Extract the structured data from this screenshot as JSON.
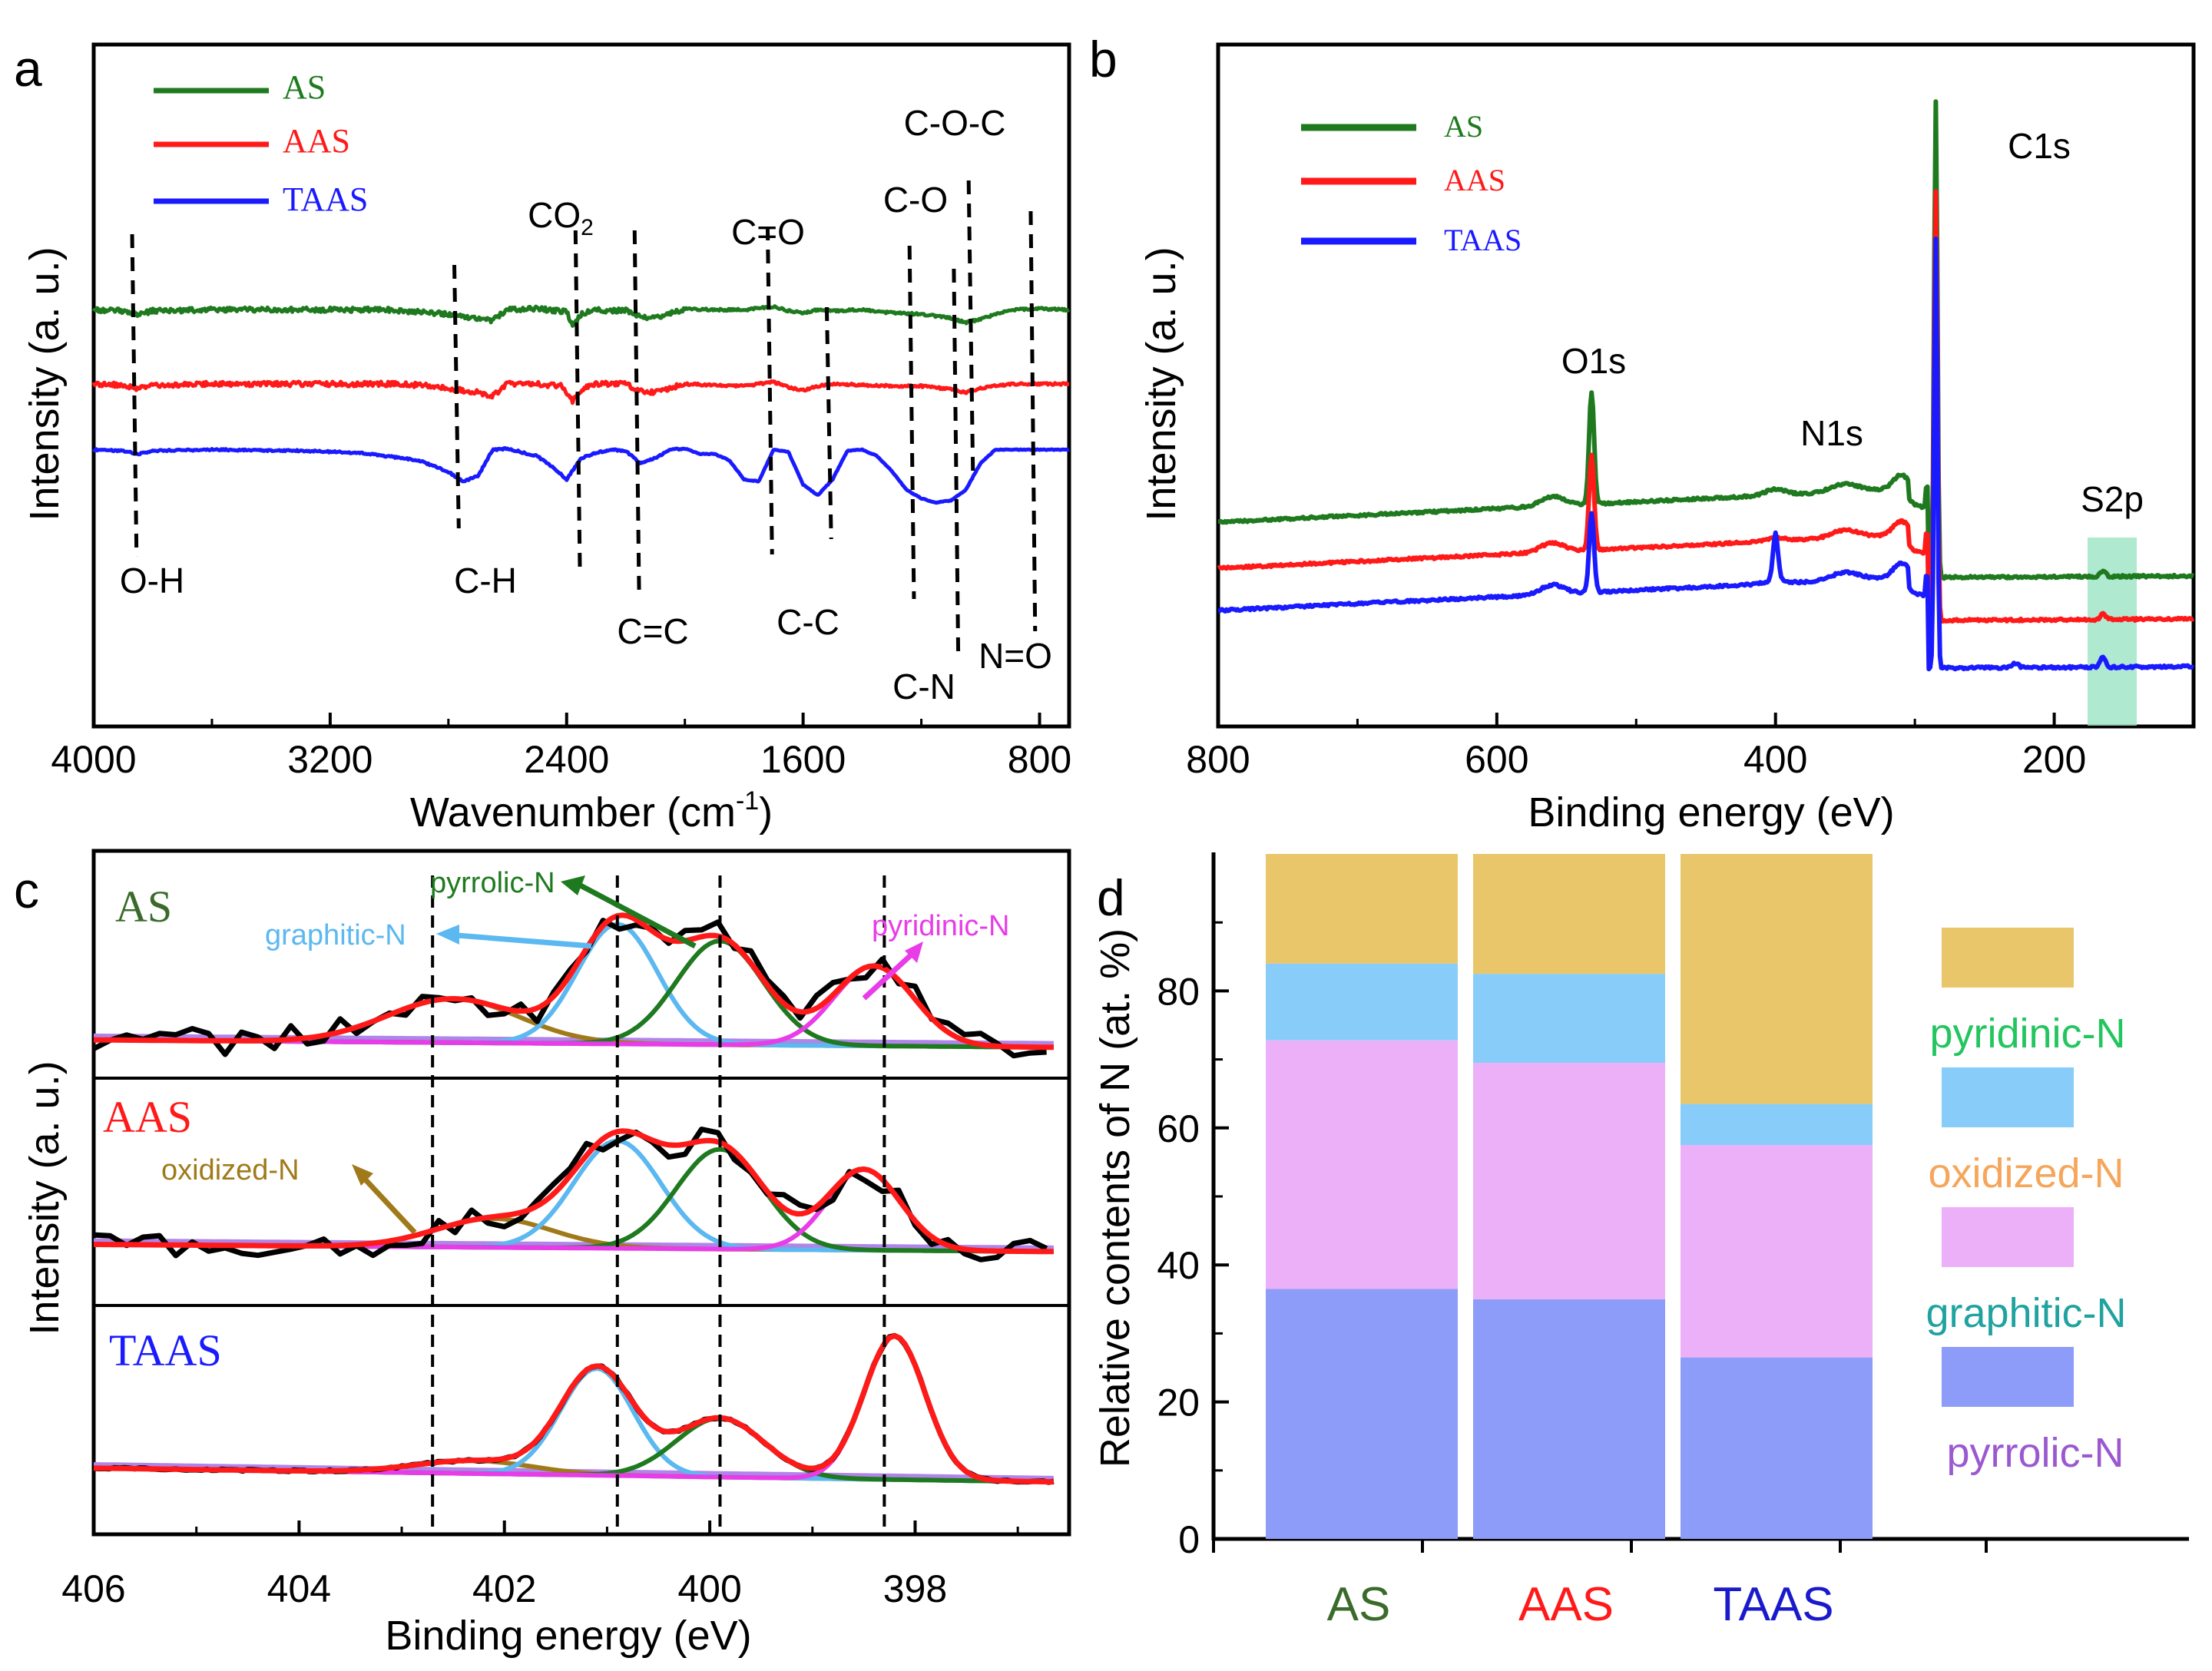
{
  "chart_data": [
    {
      "panel": "a",
      "type": "line",
      "title": "",
      "xlabel": "Wavenumber (cm-1)",
      "xlabel_main": "Wavenumber (cm",
      "xlabel_sup": "-1",
      "xlabel_close": ")",
      "ylabel": "Intensity (a. u.)",
      "xlim": [
        4000,
        700
      ],
      "xticks": [
        "4000",
        "3200",
        "2400",
        "1600",
        "800"
      ],
      "series": [
        {
          "name": "AS",
          "color": "#1f7a1f",
          "baseline": 0.7,
          "points": [
            [
              4000,
              0.7
            ],
            [
              3900,
              0.69
            ],
            [
              3850,
              0.66
            ],
            [
              3800,
              0.69
            ],
            [
              3600,
              0.7
            ],
            [
              3300,
              0.7
            ],
            [
              3000,
              0.7
            ],
            [
              2900,
              0.68
            ],
            [
              2800,
              0.66
            ],
            [
              2700,
              0.62
            ],
            [
              2650,
              0.6
            ],
            [
              2600,
              0.7
            ],
            [
              2500,
              0.71
            ],
            [
              2400,
              0.68
            ],
            [
              2380,
              0.55
            ],
            [
              2350,
              0.66
            ],
            [
              2300,
              0.7
            ],
            [
              2250,
              0.69
            ],
            [
              2200,
              0.7
            ],
            [
              2150,
              0.63
            ],
            [
              2100,
              0.62
            ],
            [
              2000,
              0.71
            ],
            [
              1900,
              0.7
            ],
            [
              1800,
              0.7
            ],
            [
              1700,
              0.73
            ],
            [
              1650,
              0.69
            ],
            [
              1600,
              0.67
            ],
            [
              1550,
              0.7
            ],
            [
              1500,
              0.69
            ],
            [
              1400,
              0.7
            ],
            [
              1300,
              0.67
            ],
            [
              1200,
              0.66
            ],
            [
              1100,
              0.62
            ],
            [
              1050,
              0.58
            ],
            [
              1000,
              0.61
            ],
            [
              900,
              0.7
            ],
            [
              800,
              0.71
            ],
            [
              700,
              0.7
            ]
          ]
        },
        {
          "name": "AAS",
          "color": "#ff1a1a",
          "baseline": 0.0,
          "points": [
            [
              4000,
              0.0
            ],
            [
              3900,
              -0.01
            ],
            [
              3850,
              -0.04
            ],
            [
              3800,
              -0.01
            ],
            [
              3600,
              0.0
            ],
            [
              3300,
              0.0
            ],
            [
              3000,
              0.0
            ],
            [
              2900,
              -0.01
            ],
            [
              2800,
              -0.04
            ],
            [
              2700,
              -0.08
            ],
            [
              2650,
              -0.11
            ],
            [
              2600,
              0.0
            ],
            [
              2500,
              0.0
            ],
            [
              2420,
              -0.02
            ],
            [
              2380,
              -0.16
            ],
            [
              2350,
              -0.05
            ],
            [
              2300,
              0.0
            ],
            [
              2200,
              0.0
            ],
            [
              2150,
              -0.07
            ],
            [
              2100,
              -0.08
            ],
            [
              2000,
              0.0
            ],
            [
              1900,
              -0.01
            ],
            [
              1800,
              -0.02
            ],
            [
              1700,
              0.02
            ],
            [
              1650,
              -0.03
            ],
            [
              1600,
              -0.06
            ],
            [
              1550,
              -0.02
            ],
            [
              1500,
              0.0
            ],
            [
              1400,
              -0.01
            ],
            [
              1300,
              -0.02
            ],
            [
              1200,
              -0.02
            ],
            [
              1100,
              -0.05
            ],
            [
              1050,
              -0.08
            ],
            [
              1000,
              -0.04
            ],
            [
              900,
              0.0
            ],
            [
              800,
              0.0
            ],
            [
              700,
              0.0
            ]
          ]
        },
        {
          "name": "TAAS",
          "color": "#1a1aff",
          "baseline": -0.62,
          "points": [
            [
              4000,
              -0.62
            ],
            [
              3900,
              -0.63
            ],
            [
              3850,
              -0.66
            ],
            [
              3800,
              -0.63
            ],
            [
              3600,
              -0.62
            ],
            [
              3300,
              -0.63
            ],
            [
              3100,
              -0.65
            ],
            [
              2900,
              -0.72
            ],
            [
              2800,
              -0.83
            ],
            [
              2750,
              -0.92
            ],
            [
              2700,
              -0.87
            ],
            [
              2650,
              -0.62
            ],
            [
              2600,
              -0.61
            ],
            [
              2500,
              -0.68
            ],
            [
              2450,
              -0.78
            ],
            [
              2400,
              -0.9
            ],
            [
              2380,
              -0.82
            ],
            [
              2350,
              -0.7
            ],
            [
              2300,
              -0.65
            ],
            [
              2250,
              -0.62
            ],
            [
              2200,
              -0.63
            ],
            [
              2150,
              -0.75
            ],
            [
              2100,
              -0.7
            ],
            [
              2050,
              -0.62
            ],
            [
              2000,
              -0.61
            ],
            [
              1950,
              -0.66
            ],
            [
              1900,
              -0.66
            ],
            [
              1850,
              -0.72
            ],
            [
              1800,
              -0.9
            ],
            [
              1750,
              -0.92
            ],
            [
              1700,
              -0.62
            ],
            [
              1650,
              -0.64
            ],
            [
              1600,
              -0.95
            ],
            [
              1550,
              -1.05
            ],
            [
              1500,
              -0.9
            ],
            [
              1450,
              -0.63
            ],
            [
              1400,
              -0.62
            ],
            [
              1350,
              -0.68
            ],
            [
              1300,
              -0.82
            ],
            [
              1250,
              -1.0
            ],
            [
              1200,
              -1.08
            ],
            [
              1150,
              -1.12
            ],
            [
              1100,
              -1.1
            ],
            [
              1050,
              -1.0
            ],
            [
              1000,
              -0.75
            ],
            [
              950,
              -0.62
            ],
            [
              900,
              -0.62
            ],
            [
              800,
              -0.62
            ],
            [
              700,
              -0.62
            ]
          ]
        }
      ],
      "legend": [
        "AS",
        "AAS",
        "TAAS"
      ],
      "annotations": [
        "O-H",
        "C-H",
        "CO2",
        "C=C",
        "C=O",
        "C-C",
        "C-O",
        "C-N",
        "N=O",
        "C-O-C"
      ],
      "annotation_positions_cm1": {
        "O-H": 3870,
        "C-H": 2780,
        "CO2": 2370,
        "C=C": 2170,
        "C=O": 1680,
        "C-C": 1520,
        "C-O": 1240,
        "C-N": 1090,
        "N=O": 830,
        "C-O-C": 1040
      }
    },
    {
      "panel": "b",
      "type": "line",
      "title": "",
      "xlabel": "Binding energy (eV)",
      "ylabel": "Intensity (a. u.)",
      "xlim": [
        800,
        100
      ],
      "xticks": [
        "800",
        "600",
        "400",
        "200"
      ],
      "series": [
        {
          "name": "AS",
          "color": "#1f7a1f",
          "baseline": 0.0
        },
        {
          "name": "AAS",
          "color": "#ff1a1a",
          "baseline": -0.3
        },
        {
          "name": "TAAS",
          "color": "#1a1aff",
          "baseline": -0.6
        }
      ],
      "legend": [
        "AS",
        "AAS",
        "TAAS"
      ],
      "peaks": [
        {
          "label": "O1s",
          "ev": 532
        },
        {
          "label": "N1s",
          "ev": 400
        },
        {
          "label": "C1s",
          "ev": 285
        },
        {
          "label": "S2p",
          "ev": 165
        }
      ]
    },
    {
      "panel": "c",
      "type": "line",
      "title": "",
      "xlabel": "Binding energy (eV)",
      "ylabel": "Intensity (a. u.)",
      "xlim": [
        406,
        396.5
      ],
      "xticks": [
        "406",
        "404",
        "402",
        "400",
        "398"
      ],
      "reference_lines_ev": [
        402.7,
        400.9,
        399.9,
        398.3
      ],
      "subpanels": [
        {
          "name": "AS",
          "components": [
            {
              "label": "oxidized-N",
              "center": 402.5,
              "height": 0.22,
              "width": 0.9,
              "color": "#a07a1a"
            },
            {
              "label": "graphitic-N",
              "center": 400.9,
              "height": 0.6,
              "width": 0.55,
              "color": "#5bb8f0"
            },
            {
              "label": "pyrrolic-N",
              "center": 399.9,
              "height": 0.52,
              "width": 0.6,
              "color": "#1f7a1f"
            },
            {
              "label": "pyridinic-N",
              "center": 398.4,
              "height": 0.4,
              "width": 0.55,
              "color": "#e83ce8"
            }
          ]
        },
        {
          "name": "AAS",
          "components": [
            {
              "label": "oxidized-N",
              "center": 402.1,
              "height": 0.15,
              "width": 0.8,
              "color": "#a07a1a"
            },
            {
              "label": "graphitic-N",
              "center": 400.9,
              "height": 0.56,
              "width": 0.6,
              "color": "#5bb8f0"
            },
            {
              "label": "pyrrolic-N",
              "center": 399.9,
              "height": 0.52,
              "width": 0.6,
              "color": "#1f7a1f"
            },
            {
              "label": "pyridinic-N",
              "center": 398.5,
              "height": 0.42,
              "width": 0.5,
              "color": "#e83ce8"
            }
          ]
        },
        {
          "name": "TAAS",
          "components": [
            {
              "label": "oxidized-N",
              "center": 402.3,
              "height": 0.07,
              "width": 0.8,
              "color": "#a07a1a"
            },
            {
              "label": "graphitic-N",
              "center": 401.1,
              "height": 0.58,
              "width": 0.5,
              "color": "#5bb8f0"
            },
            {
              "label": "pyrrolic-N",
              "center": 399.9,
              "height": 0.32,
              "width": 0.6,
              "color": "#1f7a1f"
            },
            {
              "label": "pyridinic-N",
              "center": 398.2,
              "height": 0.78,
              "width": 0.42,
              "color": "#e83ce8"
            }
          ]
        }
      ],
      "annotations": [
        "pyrrolic-N",
        "graphitic-N",
        "pyridinic-N",
        "oxidized-N"
      ]
    },
    {
      "panel": "d",
      "type": "bar",
      "stacked": true,
      "title": "",
      "xlabel": "",
      "ylabel": "Relative contents of N (at. %)",
      "ylim": [
        0,
        100
      ],
      "yticks": [
        "0",
        "20",
        "40",
        "60",
        "80"
      ],
      "categories": [
        "AS",
        "AAS",
        "TAAS"
      ],
      "category_colors": [
        "#3a6b2a",
        "#ff1a1a",
        "#1a1acc"
      ],
      "series": [
        {
          "name": "pyrrolic-N",
          "color": "#8c9cf8",
          "values": [
            36.5,
            35,
            26.5
          ]
        },
        {
          "name": "graphitic-N",
          "color": "#ebb0f7",
          "values": [
            36.3,
            34.5,
            31
          ]
        },
        {
          "name": "oxidized-N",
          "color": "#88cdfa",
          "values": [
            11.2,
            13,
            6
          ]
        },
        {
          "name": "pyridinic-N",
          "color": "#e9c66a",
          "values": [
            16,
            17.5,
            36.5
          ]
        }
      ],
      "legend_entries": [
        {
          "label": "pyridinic-N",
          "text_color": "#22c55e"
        },
        {
          "label": "oxidized-N",
          "text_color": "#f5a65b"
        },
        {
          "label": "graphitic-N",
          "text_color": "#1fa3a0"
        },
        {
          "label": "pyrrolic-N",
          "text_color": "#9b59d0"
        }
      ]
    }
  ],
  "panel_labels": [
    "a",
    "b",
    "c",
    "d"
  ]
}
